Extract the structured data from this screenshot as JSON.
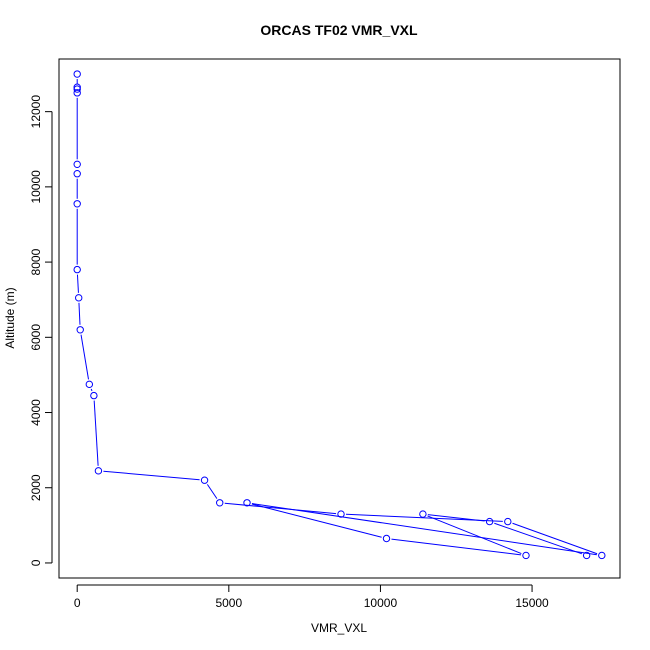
{
  "chart_data": {
    "type": "line",
    "title": "ORCAS TF02 VMR_VXL",
    "xlabel": "VMR_VXL",
    "ylabel": "Altitude (m)",
    "xlim": [
      -600,
      17900
    ],
    "ylim": [
      -400,
      13400
    ],
    "xticks": [
      0,
      5000,
      10000,
      15000
    ],
    "yticks": [
      0,
      2000,
      4000,
      6000,
      8000,
      10000,
      12000
    ],
    "grid": false,
    "colors": {
      "series": "#0000ff",
      "axis": "#000000"
    },
    "series": [
      {
        "x": [
          0,
          0,
          0,
          0,
          0,
          0,
          0,
          0,
          50,
          100,
          400,
          550,
          700,
          4200,
          4700,
          8700,
          14200,
          17300,
          5600,
          10200,
          14800,
          11400,
          13600,
          16800
        ],
        "y": [
          13000,
          12600,
          12650,
          12500,
          10600,
          10350,
          9550,
          7800,
          7050,
          6200,
          4750,
          4450,
          2450,
          2200,
          1600,
          1300,
          1100,
          200,
          1600,
          650,
          200,
          1300,
          1100,
          200
        ]
      }
    ]
  }
}
